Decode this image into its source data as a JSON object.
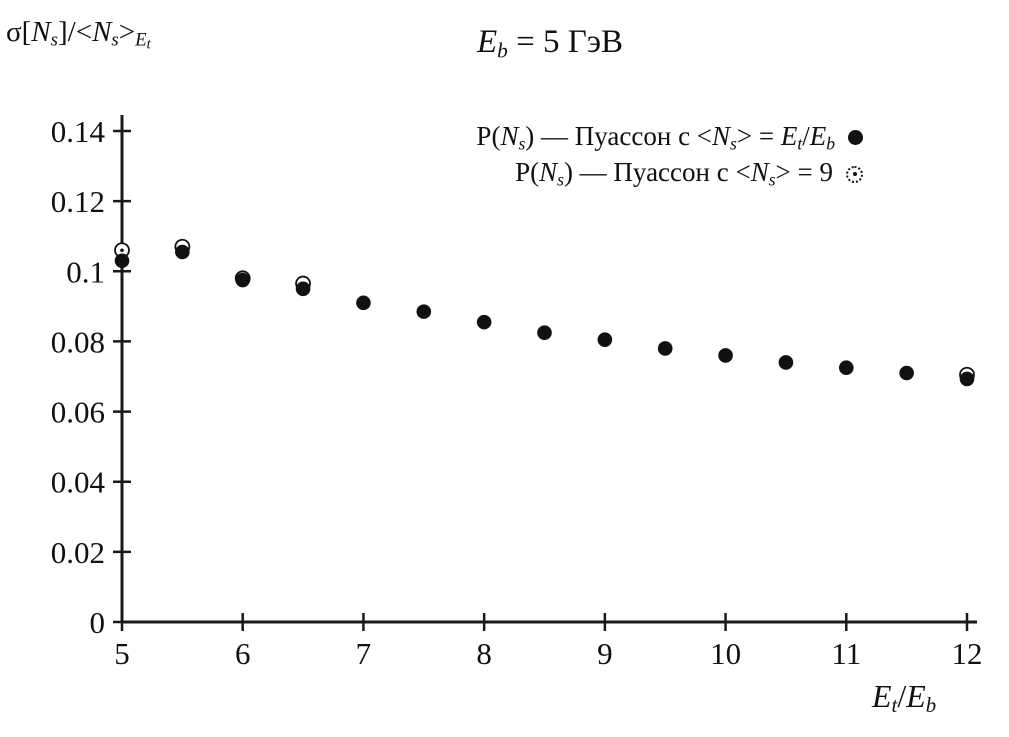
{
  "page": {
    "background": "#ffffff"
  },
  "title": {
    "text": "Eb = 5 ГэВ",
    "parts": [
      {
        "t": "E",
        "style": "it"
      },
      {
        "t": "b",
        "style": "itsub"
      },
      {
        "t": " = 5 ГэВ",
        "style": "plain"
      }
    ]
  },
  "y_axis_label": {
    "text": "σ[Ns]/<Ns>Et",
    "parts": [
      {
        "t": "σ[",
        "style": "plain"
      },
      {
        "t": "N",
        "style": "it"
      },
      {
        "t": "s",
        "style": "itsub"
      },
      {
        "t": "]/<",
        "style": "plain"
      },
      {
        "t": "N",
        "style": "it"
      },
      {
        "t": "s",
        "style": "itsub"
      },
      {
        "t": ">",
        "style": "plain"
      },
      {
        "t": "E",
        "style": "itsub"
      },
      {
        "t": "t",
        "style": "itsubsub"
      }
    ]
  },
  "x_axis_label": {
    "text": "Et/Eb",
    "parts": [
      {
        "t": "E",
        "style": "it"
      },
      {
        "t": "t",
        "style": "itsub"
      },
      {
        "t": "/",
        "style": "plain"
      },
      {
        "t": "E",
        "style": "it"
      },
      {
        "t": "b",
        "style": "itsub"
      }
    ]
  },
  "legend": {
    "items": [
      {
        "text": "P(Ns) — Пуассон с <Ns> = Et/Eb",
        "marker": "filled-circle",
        "parts": [
          {
            "t": "P(",
            "style": "plain"
          },
          {
            "t": "N",
            "style": "it"
          },
          {
            "t": "s",
            "style": "itsub"
          },
          {
            "t": ") — Пуассон с <",
            "style": "plain"
          },
          {
            "t": "N",
            "style": "it"
          },
          {
            "t": "s",
            "style": "itsub"
          },
          {
            "t": "> = ",
            "style": "plain"
          },
          {
            "t": "E",
            "style": "it"
          },
          {
            "t": "t",
            "style": "itsub"
          },
          {
            "t": "/",
            "style": "plain"
          },
          {
            "t": "E",
            "style": "it"
          },
          {
            "t": "b",
            "style": "itsub"
          }
        ]
      },
      {
        "text": "P(Ns) — Пуассон с <Ns> = 9",
        "marker": "open-dotted-circle",
        "parts": [
          {
            "t": "P(",
            "style": "plain"
          },
          {
            "t": "N",
            "style": "it"
          },
          {
            "t": "s",
            "style": "itsub"
          },
          {
            "t": ") — Пуассон с <",
            "style": "plain"
          },
          {
            "t": "N",
            "style": "it"
          },
          {
            "t": "s",
            "style": "itsub"
          },
          {
            "t": "> = 9",
            "style": "plain"
          }
        ]
      }
    ]
  },
  "chart_data": {
    "type": "scatter",
    "title": "Eb = 5 ГэВ",
    "xlabel": "Et/Eb",
    "ylabel": "σ[Ns]/<Ns>Et",
    "x": [
      5,
      5.5,
      6,
      6.5,
      7,
      7.5,
      8,
      8.5,
      9,
      9.5,
      10,
      10.5,
      11,
      11.5,
      12
    ],
    "series": [
      {
        "name": "P(Ns) — Пуассон с <Ns> = Et/Eb",
        "marker": "filled-circle",
        "values": [
          0.103,
          0.1055,
          0.0975,
          0.095,
          0.091,
          0.0885,
          0.0855,
          0.0825,
          0.0805,
          0.078,
          0.076,
          0.074,
          0.0725,
          0.071,
          0.0693
        ]
      },
      {
        "name": "P(Ns) — Пуассон с <Ns> = 9",
        "marker": "open-dotted-circle",
        "values": [
          0.106,
          0.107,
          0.098,
          0.0965,
          null,
          null,
          null,
          null,
          null,
          null,
          null,
          null,
          null,
          null,
          0.0705
        ]
      }
    ],
    "xlim": [
      5,
      12
    ],
    "ylim": [
      0,
      0.14
    ],
    "x_ticks": [
      5,
      6,
      7,
      8,
      9,
      10,
      11,
      12
    ],
    "x_tick_labels": [
      "5",
      "6",
      "7",
      "8",
      "9",
      "10",
      "11",
      "12"
    ],
    "y_ticks": [
      0,
      0.02,
      0.04,
      0.06,
      0.08,
      0.1,
      0.12,
      0.14
    ],
    "y_tick_labels": [
      "0",
      "0.02",
      "0.04",
      "0.06",
      "0.08",
      "0.1",
      "0.12",
      "0.14"
    ],
    "grid": false,
    "legend_position": "top-inside",
    "axis_color": "#1a1a1a",
    "point_color": "#111111"
  }
}
